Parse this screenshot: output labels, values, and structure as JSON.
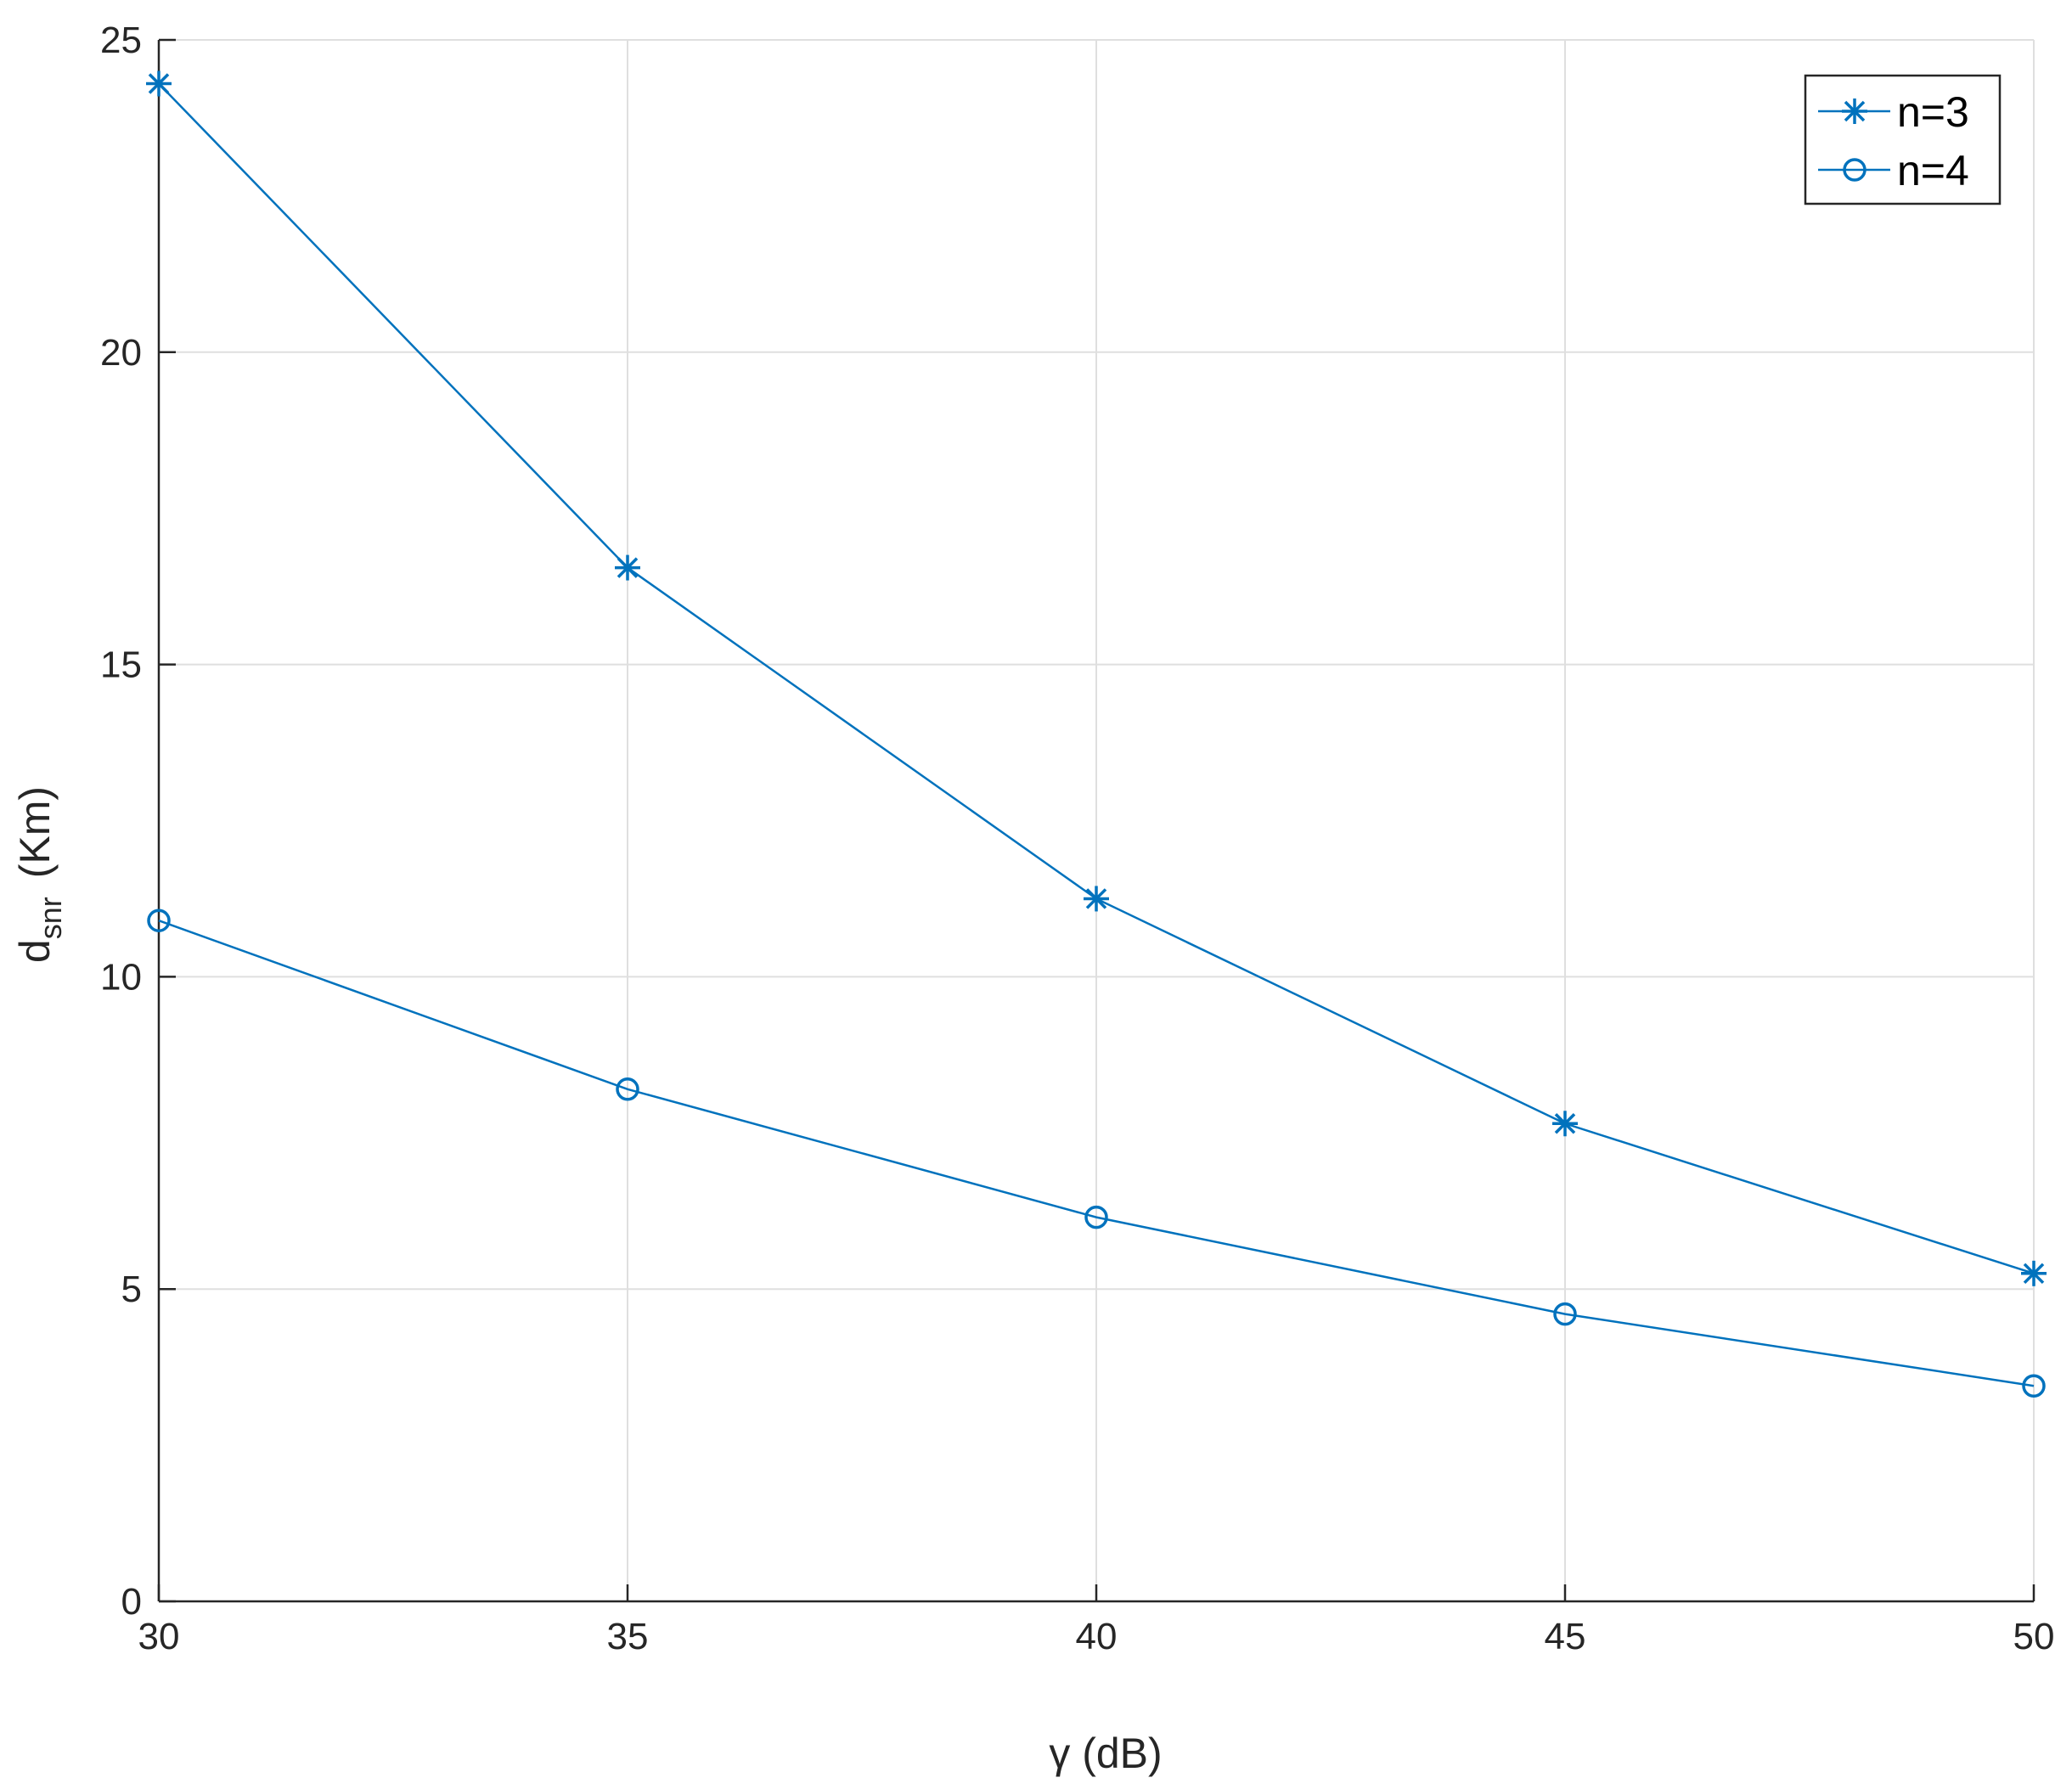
{
  "chart_data": {
    "type": "line",
    "title": "",
    "xlabel": "γ (dB)",
    "ylabel": {
      "main": "d",
      "subscript": "snr",
      "unit": "(Km)"
    },
    "xlim": [
      30,
      50
    ],
    "ylim": [
      0,
      25
    ],
    "xticks": [
      30,
      35,
      40,
      45,
      50
    ],
    "yticks": [
      0,
      5,
      10,
      15,
      20,
      25
    ],
    "grid": true,
    "legend_position": "top-right",
    "series": [
      {
        "name": "n=3",
        "marker": "star",
        "color": "#0072BD",
        "x": [
          30,
          35,
          40,
          45,
          50
        ],
        "y": [
          24.3,
          16.55,
          11.25,
          7.65,
          5.25
        ]
      },
      {
        "name": "n=4",
        "marker": "circle",
        "color": "#0072BD",
        "x": [
          30,
          35,
          40,
          45,
          50
        ],
        "y": [
          10.9,
          8.2,
          6.15,
          4.6,
          3.45
        ]
      }
    ]
  }
}
